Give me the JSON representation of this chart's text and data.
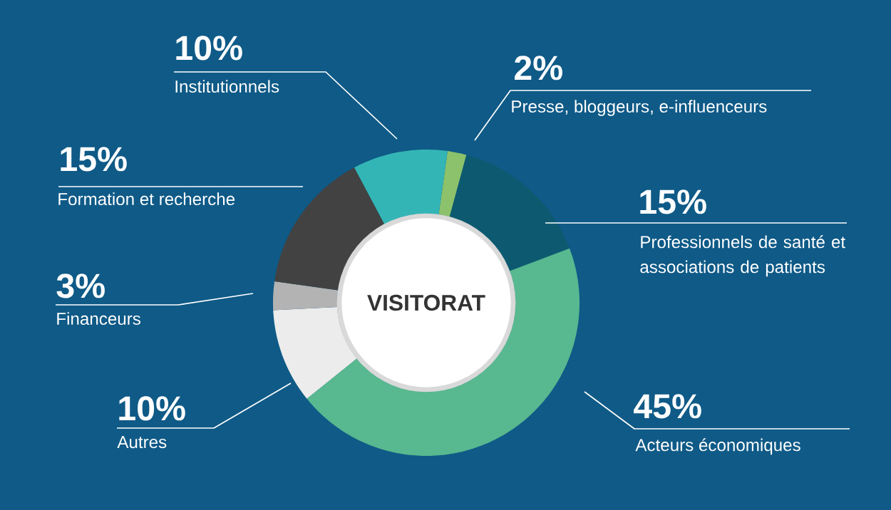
{
  "chart_data": {
    "type": "donut",
    "title": "VISITORAT",
    "categories": [
      "Presse, bloggeurs, e-influenceurs",
      "Professionnels de santé et associations de patients",
      "Acteurs économiques",
      "Autres",
      "Financeurs",
      "Formation et recherche",
      "Institutionnels"
    ],
    "values": [
      2,
      15,
      45,
      10,
      3,
      15,
      10
    ],
    "colors": [
      "#8cc26b",
      "#0d5a70",
      "#58b88f",
      "#ececec",
      "#b3b3b3",
      "#424242",
      "#34b5b5"
    ],
    "value_labels": [
      "2%",
      "15%",
      "45%",
      "10%",
      "3%",
      "15%",
      "10%"
    ]
  }
}
